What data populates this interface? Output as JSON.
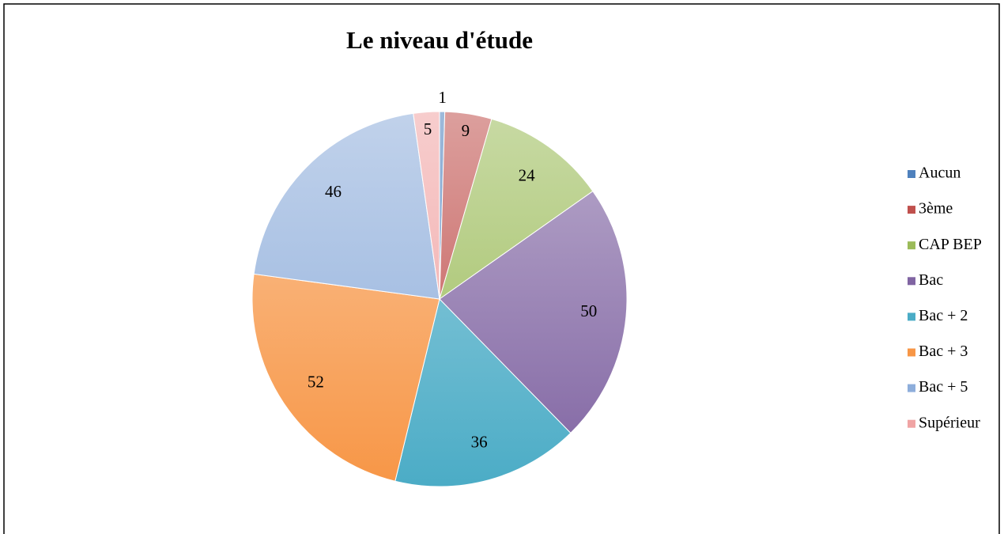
{
  "chart_data": {
    "type": "pie",
    "title": "Le niveau d'étude",
    "categories": [
      "Aucun",
      "3ème",
      "CAP BEP",
      "Bac",
      "Bac + 2",
      "Bac + 3",
      "Bac + 5",
      "Supérieur"
    ],
    "values": [
      1,
      9,
      24,
      50,
      36,
      52,
      46,
      5
    ],
    "colors": [
      "#4f81bd",
      "#c0504d",
      "#9bbb59",
      "#8064a2",
      "#4bacc6",
      "#f79646",
      "#8eaedb",
      "#f0a4a4"
    ],
    "legend": "right"
  }
}
